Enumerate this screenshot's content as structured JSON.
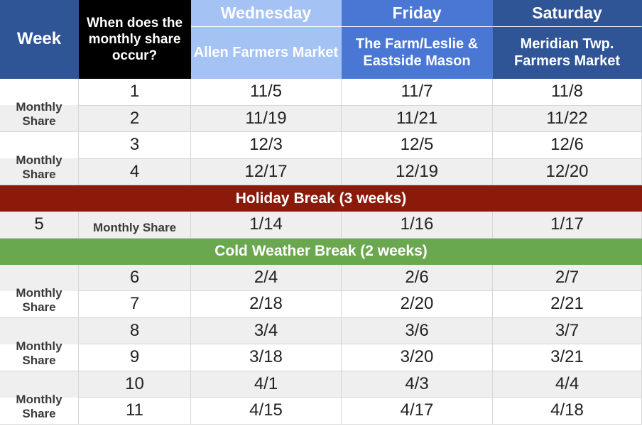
{
  "header": {
    "week_label": "Week",
    "when_label": "When does the monthly share occur?",
    "days": [
      "Wednesday",
      "Friday",
      "Saturday"
    ],
    "markets": [
      "Allen Farmers Market",
      "The Farm/Leslie & Eastside Mason",
      "Meridian Twp. Farmers Market"
    ]
  },
  "monthly_share_label": "Monthly Share",
  "rows": [
    {
      "week": "1",
      "dates": [
        "11/5",
        "11/7",
        "11/8"
      ]
    },
    {
      "week": "2",
      "dates": [
        "11/19",
        "11/21",
        "11/22"
      ]
    },
    {
      "week": "3",
      "dates": [
        "12/3",
        "12/5",
        "12/6"
      ]
    },
    {
      "week": "4",
      "dates": [
        "12/17",
        "12/19",
        "12/20"
      ]
    },
    {
      "week": "5",
      "dates": [
        "1/14",
        "1/16",
        "1/17"
      ]
    },
    {
      "week": "6",
      "dates": [
        "2/4",
        "2/6",
        "2/7"
      ]
    },
    {
      "week": "7",
      "dates": [
        "2/18",
        "2/20",
        "2/21"
      ]
    },
    {
      "week": "8",
      "dates": [
        "3/4",
        "3/6",
        "3/7"
      ]
    },
    {
      "week": "9",
      "dates": [
        "3/18",
        "3/20",
        "3/21"
      ]
    },
    {
      "week": "10",
      "dates": [
        "4/1",
        "4/3",
        "4/4"
      ]
    },
    {
      "week": "11",
      "dates": [
        "4/15",
        "4/17",
        "4/18"
      ]
    }
  ],
  "breaks": {
    "holiday": "Holiday Break (3 weeks)",
    "cold": "Cold Weather Break (2 weeks)"
  },
  "colors": {
    "header_dark": "#2f5597",
    "header_mid": "#4a77d4",
    "header_light": "#a4c2f4",
    "holiday": "#8b1a0a",
    "cold": "#6aa84f",
    "row_alt": "#efefef"
  }
}
